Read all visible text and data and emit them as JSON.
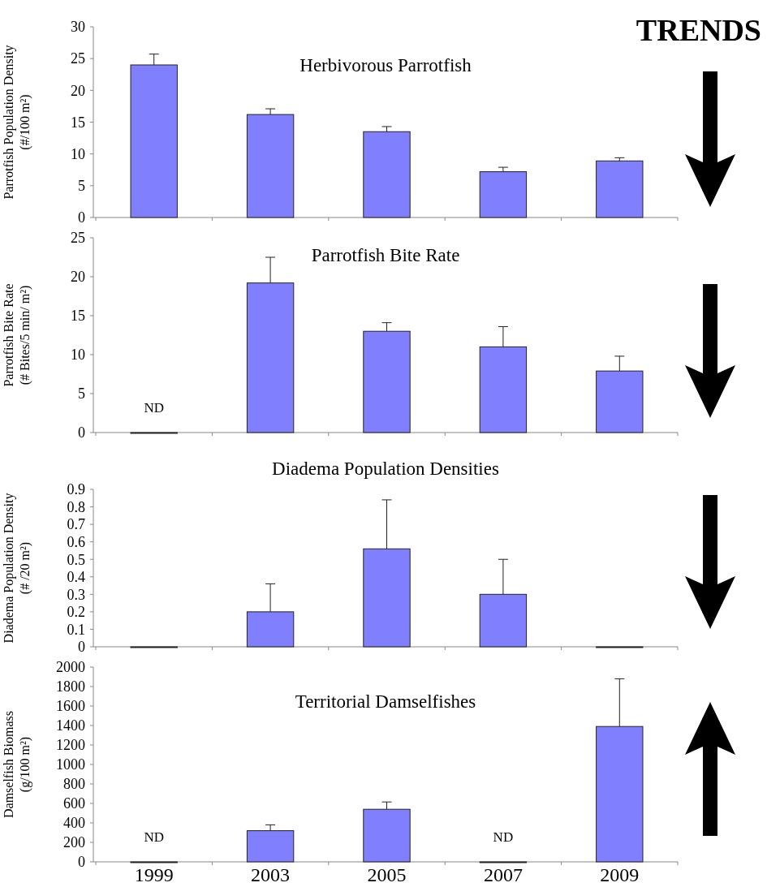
{
  "chart_data": [
    {
      "type": "bar",
      "title": "Herbivorous Parrotfish",
      "ylabel": "Parrotfish Population Density\n(#/100 m²)",
      "categories": [
        "1999",
        "2003",
        "2005",
        "2007",
        "2009"
      ],
      "values": [
        24,
        16.2,
        13.5,
        7.2,
        8.9
      ],
      "errors": [
        [
          24,
          25.7
        ],
        [
          16.2,
          17.1
        ],
        [
          13.5,
          14.3
        ],
        [
          7.2,
          7.9
        ],
        [
          8.9,
          9.4
        ]
      ],
      "color": "#8080ff",
      "ylim": [
        0,
        30
      ],
      "yticks": [
        0,
        5,
        10,
        15,
        20,
        25,
        30
      ],
      "tick_labels": "y",
      "annotations": [
        "TRENDS"
      ]
    },
    {
      "type": "bar",
      "title": "Parrotfish Bite Rate",
      "ylabel": "Parrotfish Bite Rate\n(# Bites/5 min/ m²)",
      "categories": [
        "1999",
        "2003",
        "2005",
        "2007",
        "2009"
      ],
      "values": [
        0,
        19.2,
        13,
        11,
        7.9
      ],
      "errors": [
        null,
        [
          19.2,
          22.5
        ],
        [
          13,
          14.1
        ],
        [
          11,
          13.6
        ],
        [
          7.9,
          9.8
        ]
      ],
      "color": "#8080ff",
      "ylim": [
        0,
        25
      ],
      "yticks": [
        0,
        5,
        10,
        15,
        20,
        25
      ],
      "tick_labels": "y",
      "annotations": [
        {
          "text": "ND",
          "x": "1999",
          "y": 0
        }
      ]
    },
    {
      "type": "bar",
      "title": "Diadema Population Densities",
      "ylabel": "Diadema Population Density\n(# /20 m²)",
      "categories": [
        "1999",
        "2003",
        "2005",
        "2007",
        "2009"
      ],
      "values": [
        0,
        0.2,
        0.56,
        0.3,
        0
      ],
      "errors": [
        null,
        [
          0.2,
          0.36
        ],
        [
          0.56,
          0.84
        ],
        [
          0.3,
          0.5
        ],
        null
      ],
      "color": "#8080ff",
      "ylim": [
        0,
        0.9
      ],
      "yticks": [
        0,
        0.1,
        0.2,
        0.3,
        0.4,
        0.5,
        0.6,
        0.7,
        0.8,
        0.9
      ],
      "tick_labels": "y"
    },
    {
      "type": "bar",
      "title": "Territorial Damselfishes",
      "ylabel": "Damselfish Biomass\n(g/100 m²)",
      "categories": [
        "1999",
        "2003",
        "2005",
        "2007",
        "2009"
      ],
      "values": [
        0,
        320,
        540,
        0,
        1390
      ],
      "errors": [
        null,
        [
          320,
          380
        ],
        [
          540,
          615
        ],
        null,
        [
          1390,
          1880
        ]
      ],
      "color": "#8080ff",
      "ylim": [
        0,
        2000
      ],
      "yticks": [
        0,
        200,
        400,
        600,
        800,
        1000,
        1200,
        1400,
        1600,
        1800,
        2000
      ],
      "annotations": [
        {
          "text": "ND",
          "x": "1999",
          "y": 0
        },
        {
          "text": "ND",
          "x": "2007",
          "y": 0
        }
      ]
    }
  ]
}
